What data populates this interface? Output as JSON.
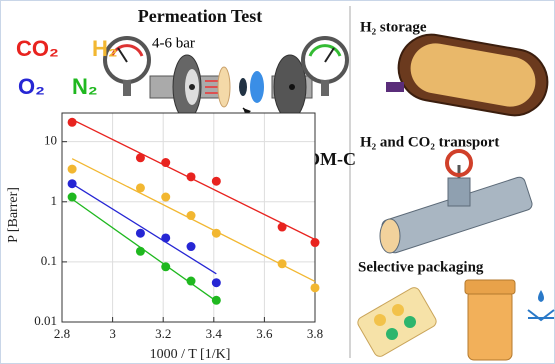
{
  "chart_data": {
    "type": "scatter",
    "title": "Permeation Test",
    "annotations": [
      "4-6 bar",
      "POM-C"
    ],
    "x_label": "1000 / T [1/K]",
    "y_label": "P [Barrer]",
    "xlim": [
      2.8,
      3.8
    ],
    "xticks": [
      2.8,
      3,
      3.2,
      3.4,
      3.6,
      3.8
    ],
    "ylim": [
      0.01,
      30
    ],
    "yticks": [
      0.01,
      0.1,
      1,
      10
    ],
    "log_y": true,
    "grid": true,
    "series": [
      {
        "name": "CO₂",
        "color": "#e8231f",
        "x": [
          2.84,
          3.11,
          3.21,
          3.31,
          3.41,
          3.67,
          3.8
        ],
        "values": [
          21,
          5.4,
          4.5,
          2.6,
          2.2,
          0.38,
          0.21
        ]
      },
      {
        "name": "H₂",
        "color": "#f2b731",
        "x": [
          2.84,
          3.11,
          3.21,
          3.31,
          3.41,
          3.67,
          3.8
        ],
        "values": [
          3.5,
          1.7,
          1.2,
          0.59,
          0.3,
          0.093,
          0.037
        ]
      },
      {
        "name": "O₂",
        "color": "#2626d4",
        "x": [
          2.84,
          3.11,
          3.21,
          3.31,
          3.41
        ],
        "values": [
          2.0,
          0.3,
          0.25,
          0.18,
          0.045
        ]
      },
      {
        "name": "N₂",
        "color": "#1fb81f",
        "x": [
          2.84,
          3.11,
          3.21,
          3.31,
          3.41
        ],
        "values": [
          1.2,
          0.15,
          0.083,
          0.048,
          0.023
        ]
      }
    ],
    "applications": [
      "H₂ storage",
      "H₂ and CO₂ transport",
      "Selective packaging"
    ]
  }
}
